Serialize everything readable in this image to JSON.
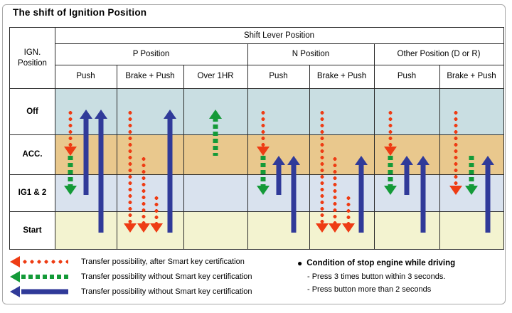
{
  "title": "The shift of Ignition Position",
  "colors": {
    "arrow_red": "#ee3c14",
    "arrow_green": "#149a38",
    "arrow_blue": "#303a99",
    "grid_line": "#2a2a2a",
    "frame_border": "#a9a9a9"
  },
  "table": {
    "corner_label": "IGN.\nPosition",
    "shift_lever_label": "Shift Lever Position",
    "groups": [
      {
        "label": "P Position"
      },
      {
        "label": "N Position"
      },
      {
        "label": "Other Position (D or R)"
      }
    ],
    "columns": [
      "Push",
      "Brake + Push",
      "Over 1HR",
      "Push",
      "Brake + Push",
      "Push",
      "Brake + Push"
    ],
    "rows": [
      {
        "label": "Off",
        "color": "#c9dee2"
      },
      {
        "label": "ACC.",
        "color": "#e9c88d"
      },
      {
        "label": "IG1 & 2",
        "color": "#d9e2ee"
      },
      {
        "label": "Start",
        "color": "#f3f3d0"
      }
    ],
    "arrows": [
      {
        "col": 0,
        "track": 0,
        "kind": "red-dotted",
        "from": "Off",
        "to": "ACC."
      },
      {
        "col": 0,
        "track": 0,
        "kind": "green-dashed",
        "from": "ACC.",
        "to": "IG1 & 2"
      },
      {
        "col": 0,
        "track": 1,
        "kind": "blue-solid",
        "from": "IG1 & 2",
        "to": "Off"
      },
      {
        "col": 0,
        "track": 2,
        "kind": "blue-solid",
        "from": "Start",
        "to": "Off"
      },
      {
        "col": 1,
        "track": 0,
        "kind": "red-dotted",
        "from": "Off",
        "to": "Start"
      },
      {
        "col": 1,
        "track": 1,
        "kind": "red-dotted",
        "from": "ACC.",
        "to": "Start"
      },
      {
        "col": 1,
        "track": 2,
        "kind": "red-dotted",
        "from": "IG1 & 2",
        "to": "Start"
      },
      {
        "col": 1,
        "track": 3,
        "kind": "blue-solid",
        "from": "Start",
        "to": "Off"
      },
      {
        "col": 2,
        "track": 0,
        "kind": "green-dashed",
        "from": "ACC.",
        "to": "Off"
      },
      {
        "col": 3,
        "track": 0,
        "kind": "red-dotted",
        "from": "Off",
        "to": "ACC."
      },
      {
        "col": 3,
        "track": 0,
        "kind": "green-dashed",
        "from": "ACC.",
        "to": "IG1 & 2"
      },
      {
        "col": 3,
        "track": 1,
        "kind": "blue-solid",
        "from": "IG1 & 2",
        "to": "ACC."
      },
      {
        "col": 3,
        "track": 2,
        "kind": "blue-solid",
        "from": "Start",
        "to": "ACC."
      },
      {
        "col": 4,
        "track": 0,
        "kind": "red-dotted",
        "from": "Off",
        "to": "Start"
      },
      {
        "col": 4,
        "track": 1,
        "kind": "red-dotted",
        "from": "ACC.",
        "to": "Start"
      },
      {
        "col": 4,
        "track": 2,
        "kind": "red-dotted",
        "from": "IG1 & 2",
        "to": "Start"
      },
      {
        "col": 4,
        "track": 3,
        "kind": "blue-solid",
        "from": "Start",
        "to": "ACC."
      },
      {
        "col": 5,
        "track": 0,
        "kind": "red-dotted",
        "from": "Off",
        "to": "ACC."
      },
      {
        "col": 5,
        "track": 0,
        "kind": "green-dashed",
        "from": "ACC.",
        "to": "IG1 & 2"
      },
      {
        "col": 5,
        "track": 1,
        "kind": "blue-solid",
        "from": "IG1 & 2",
        "to": "ACC."
      },
      {
        "col": 5,
        "track": 2,
        "kind": "blue-solid",
        "from": "Start",
        "to": "ACC."
      },
      {
        "col": 6,
        "track": 0,
        "kind": "red-dotted",
        "from": "Off",
        "to": "IG1 & 2"
      },
      {
        "col": 6,
        "track": 1,
        "kind": "green-dashed",
        "from": "ACC.",
        "to": "IG1 & 2"
      },
      {
        "col": 6,
        "track": 2,
        "kind": "blue-solid",
        "from": "Start",
        "to": "ACC."
      }
    ]
  },
  "legend": {
    "items": [
      {
        "kind": "red-dotted",
        "label": "Transfer possibility, after Smart key certification"
      },
      {
        "kind": "green-dashed",
        "label": "Transfer possibility without Smart key certification"
      },
      {
        "kind": "blue-solid",
        "label": "Transfer possibility without Smart key certification"
      }
    ]
  },
  "note": {
    "bullet": "●",
    "title": "Condition of stop engine while driving",
    "lines": [
      "- Press 3 times button within 3 seconds.",
      "- Press button more than 2 seconds"
    ]
  }
}
